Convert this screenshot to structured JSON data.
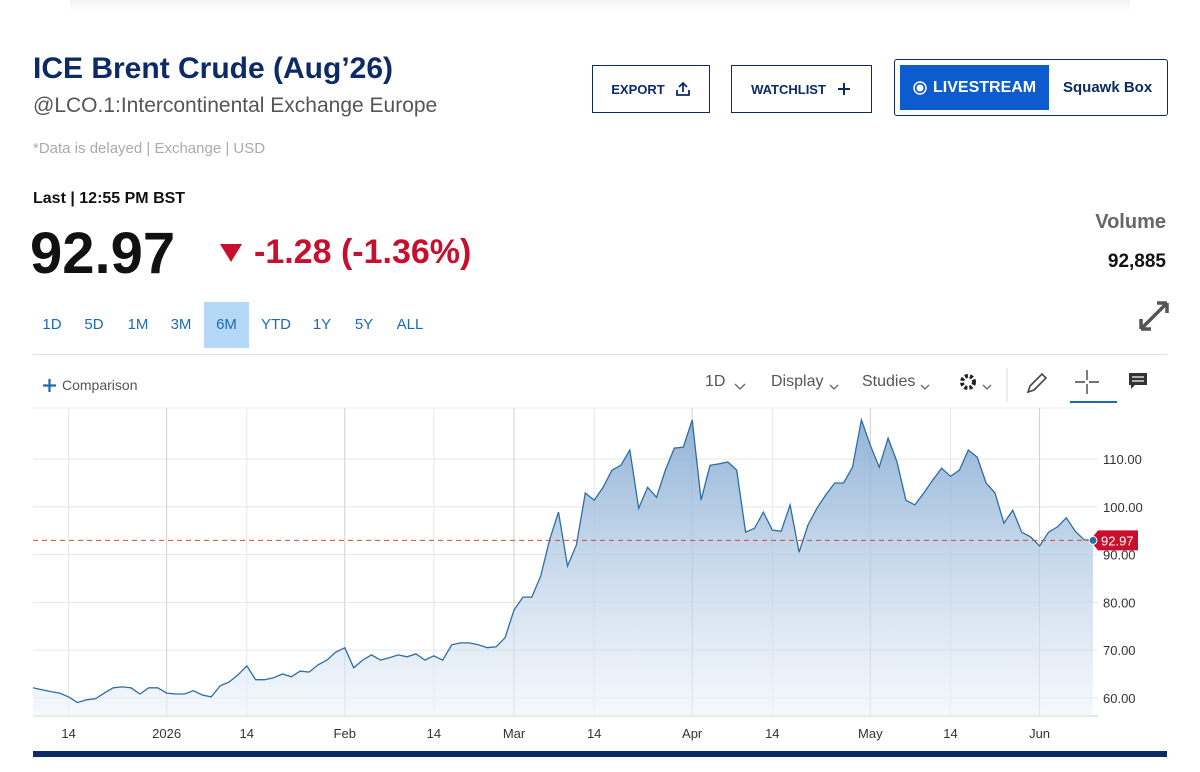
{
  "header": {
    "title": "ICE Brent Crude (Aug’26)",
    "subtitle": "@LCO.1:Intercontinental Exchange Europe",
    "note": "*Data is delayed | Exchange | USD"
  },
  "buttons": {
    "export": "EXPORT",
    "watchlist": "WATCHLIST",
    "livestream": "LIVESTREAM",
    "squawk": "Squawk Box"
  },
  "quote": {
    "last_label": "Last | 12:55 PM BST",
    "price": "92.97",
    "change": "-1.28 (-1.36%)",
    "volume_label": "Volume",
    "volume": "92,885"
  },
  "ranges": [
    "1D",
    "5D",
    "1M",
    "3M",
    "6M",
    "YTD",
    "1Y",
    "5Y",
    "ALL"
  ],
  "toolbar": {
    "comparison": "Comparison",
    "interval": "1D",
    "display": "Display",
    "studies": "Studies"
  },
  "chart_data": {
    "type": "area",
    "color": "#2e6da4",
    "grid": true,
    "categories": [
      null,
      null,
      null,
      null,
      "14",
      null,
      null,
      null,
      null,
      null,
      null,
      null,
      null,
      null,
      null,
      "2026",
      null,
      null,
      null,
      null,
      null,
      null,
      null,
      null,
      "14",
      null,
      null,
      null,
      null,
      null,
      null,
      null,
      null,
      null,
      null,
      "Feb",
      null,
      null,
      null,
      null,
      null,
      null,
      null,
      null,
      null,
      "14",
      null,
      null,
      null,
      null,
      null,
      null,
      null,
      null,
      "Mar",
      null,
      null,
      null,
      null,
      null,
      null,
      null,
      null,
      "14",
      null,
      null,
      null,
      null,
      null,
      null,
      null,
      null,
      null,
      null,
      "Apr",
      null,
      null,
      null,
      null,
      null,
      null,
      null,
      null,
      "14",
      null,
      null,
      null,
      null,
      null,
      null,
      null,
      null,
      null,
      null,
      "May",
      null,
      null,
      null,
      null,
      null,
      null,
      null,
      null,
      "14",
      null,
      null,
      null,
      null,
      null,
      null,
      null,
      null,
      null,
      "Jun",
      null,
      null,
      null,
      null,
      null,
      null
    ],
    "values": [
      62.1,
      61.7,
      61.3,
      61.0,
      60.2,
      59.0,
      59.6,
      59.8,
      61.0,
      62.1,
      62.3,
      62.1,
      60.8,
      62.1,
      62.1,
      61.0,
      60.8,
      60.8,
      61.5,
      60.6,
      60.2,
      62.5,
      63.3,
      64.8,
      66.7,
      63.8,
      63.8,
      64.2,
      65.0,
      64.4,
      65.6,
      65.4,
      66.9,
      67.9,
      69.6,
      70.5,
      66.3,
      67.9,
      69.0,
      67.9,
      68.4,
      69.0,
      68.6,
      69.2,
      67.9,
      68.8,
      67.9,
      71.1,
      71.5,
      71.5,
      71.1,
      70.5,
      70.7,
      72.6,
      78.4,
      81.1,
      81.1,
      85.5,
      93.1,
      98.9,
      87.6,
      92.0,
      102.9,
      101.4,
      104.1,
      107.7,
      108.7,
      111.9,
      99.7,
      104.1,
      102.0,
      107.7,
      112.3,
      112.5,
      118.2,
      101.4,
      108.7,
      109.0,
      109.4,
      107.7,
      94.7,
      95.5,
      98.9,
      95.1,
      94.9,
      100.4,
      90.5,
      96.2,
      99.7,
      102.5,
      105.0,
      105.0,
      108.3,
      118.2,
      112.9,
      108.3,
      114.4,
      109.4,
      101.4,
      100.4,
      102.9,
      105.6,
      108.1,
      106.4,
      107.7,
      111.9,
      110.4,
      105.0,
      102.9,
      96.6,
      99.3,
      94.7,
      93.7,
      91.8,
      94.7,
      95.8,
      97.7,
      94.9,
      93.1,
      92.97
    ],
    "ylim": [
      56.2,
      120.7
    ],
    "yticks": [
      {
        "value": 60,
        "label": "60.00"
      },
      {
        "value": 70,
        "label": "70.00"
      },
      {
        "value": 80,
        "label": "80.00"
      },
      {
        "value": 90,
        "label": "90.00"
      },
      {
        "value": 100,
        "label": "100.00"
      },
      {
        "value": 110,
        "label": "110.00"
      }
    ]
  }
}
